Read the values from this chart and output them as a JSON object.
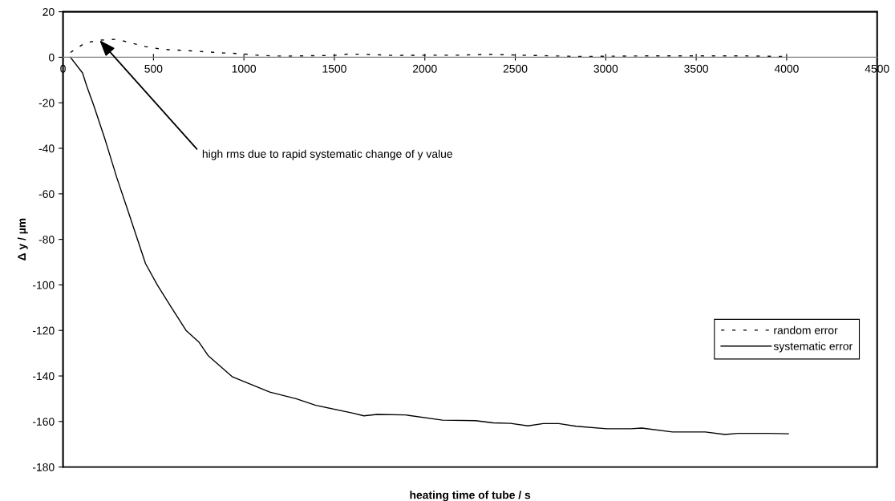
{
  "chart_data": {
    "type": "line",
    "xlabel": "heating time of tube / s",
    "ylabel": "Δ y / µm",
    "xlim": [
      0,
      4500
    ],
    "xticks": [
      0,
      500,
      1000,
      1500,
      2000,
      2500,
      3000,
      3500,
      4000,
      4500
    ],
    "ylim": [
      -180,
      20
    ],
    "yticks": [
      -180,
      -160,
      -140,
      -120,
      -100,
      -80,
      -60,
      -40,
      -20,
      0,
      20
    ],
    "grid": false,
    "legend": "bottom right",
    "marker": "none",
    "annotations": [
      {
        "text": "high rms due to rapid systematic change of y value",
        "x": 202,
        "y": 7.5
      }
    ],
    "series": [
      {
        "name": "random error",
        "color": "#000000",
        "line_style": "dashed",
        "x": [
          41,
          123,
          202,
          297,
          376,
          455,
          549,
          709,
          883,
          978,
          1073,
          1152,
          1231,
          1498,
          1577,
          1656,
          1830,
          2004,
          2181,
          2352,
          2529,
          2879,
          2972,
          3225,
          3748,
          4009
        ],
        "values": [
          2.1,
          6.3,
          7.5,
          7.9,
          6.3,
          4.7,
          3.5,
          2.8,
          1.9,
          1.6,
          0.9,
          0.6,
          0.5,
          0.8,
          1.4,
          1.3,
          0.8,
          0.9,
          0.9,
          1.3,
          0.9,
          0.3,
          0.4,
          0.6,
          0.6,
          0.3
        ]
      },
      {
        "name": "systematic error",
        "color": "#000000",
        "line_style": "solid",
        "x": [
          41,
          108,
          131,
          171,
          234,
          297,
          361,
          456,
          521,
          600,
          680,
          750,
          804,
          937,
          1143,
          1288,
          1397,
          1602,
          1663,
          1736,
          1893,
          2098,
          2280,
          2377,
          2473,
          2570,
          2655,
          2740,
          2836,
          3006,
          3139,
          3199,
          3369,
          3550,
          3659,
          3732,
          3901,
          4010
        ],
        "values": [
          0,
          -6.9,
          -12.6,
          -21.4,
          -36.5,
          -52.8,
          -67.9,
          -90.6,
          -100,
          -110,
          -120,
          -125,
          -131.2,
          -140.4,
          -147.1,
          -150,
          -152.9,
          -156.3,
          -157.5,
          -156.9,
          -157.1,
          -159.4,
          -159.6,
          -160.6,
          -160.8,
          -161.9,
          -160.9,
          -160.9,
          -162.1,
          -163.2,
          -163.2,
          -162.9,
          -164.6,
          -164.6,
          -165.7,
          -165.2,
          -165.2,
          -165.4
        ]
      }
    ]
  }
}
